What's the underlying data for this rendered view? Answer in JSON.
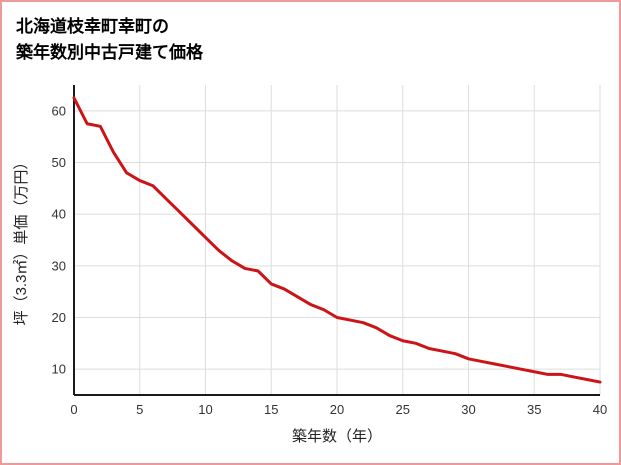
{
  "title": {
    "line1": "北海道枝幸町幸町の",
    "line2": "築年数別中古戸建て価格"
  },
  "chart_data": {
    "type": "line",
    "title": "北海道枝幸町幸町の築年数別中古戸建て価格",
    "xlabel": "築年数（年）",
    "ylabel": "坪（3.3㎡）単価（万円）",
    "x": [
      0,
      1,
      2,
      3,
      4,
      5,
      6,
      7,
      8,
      9,
      10,
      11,
      12,
      13,
      14,
      15,
      16,
      17,
      18,
      19,
      20,
      21,
      22,
      23,
      24,
      25,
      26,
      27,
      28,
      29,
      30,
      31,
      32,
      33,
      34,
      35,
      36,
      37,
      38,
      39,
      40
    ],
    "values": [
      62.5,
      57.5,
      57,
      52,
      48,
      46.5,
      45.5,
      43,
      40.5,
      38,
      35.5,
      33,
      31,
      29.5,
      29,
      26.5,
      25.5,
      24,
      22.5,
      21.5,
      20,
      19.5,
      19,
      18,
      16.5,
      15.5,
      15,
      14,
      13.5,
      13,
      12,
      11.5,
      11,
      10.5,
      10,
      9.5,
      9,
      9,
      8.5,
      8,
      7.5
    ],
    "xlim": [
      0,
      40
    ],
    "ylim": [
      5,
      65
    ],
    "x_ticks": [
      0,
      5,
      10,
      15,
      20,
      25,
      30,
      35,
      40
    ],
    "y_ticks": [
      10,
      20,
      30,
      40,
      50,
      60
    ],
    "grid": true,
    "legend": "none",
    "line_color": "#cc1417",
    "grid_color": "#dedede",
    "axis_color": "#1a1a1a",
    "tick_color": "#333333",
    "border_color": "#ef9a9a"
  }
}
